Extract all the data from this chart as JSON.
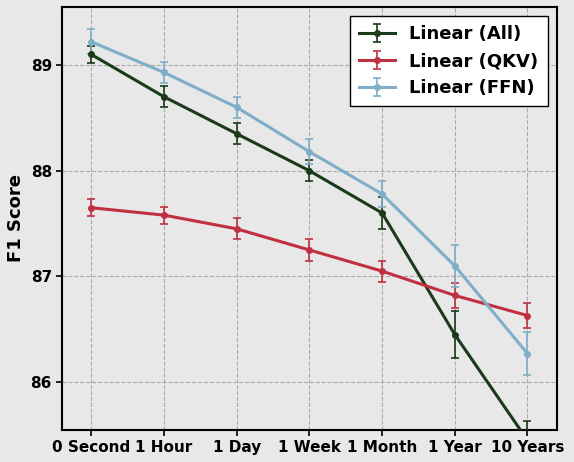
{
  "x_labels": [
    "0 Second",
    "1 Hour",
    "1 Day",
    "1 Week",
    "1 Month",
    "1 Year",
    "10 Years"
  ],
  "x_values": [
    0,
    1,
    2,
    3,
    4,
    5,
    6
  ],
  "series": [
    {
      "label": "Linear (All)",
      "color": "#1a3a1a",
      "y": [
        89.1,
        88.7,
        88.35,
        88.0,
        87.6,
        86.45,
        85.45
      ],
      "yerr": [
        0.08,
        0.1,
        0.1,
        0.1,
        0.15,
        0.22,
        0.18
      ]
    },
    {
      "label": "Linear (QKV)",
      "color": "#c03040",
      "y": [
        87.65,
        87.58,
        87.45,
        87.25,
        87.05,
        86.82,
        86.63
      ],
      "yerr": [
        0.08,
        0.08,
        0.1,
        0.1,
        0.1,
        0.12,
        0.12
      ]
    },
    {
      "label": "Linear (FFN)",
      "color": "#7faec8",
      "y": [
        89.22,
        88.93,
        88.6,
        88.18,
        87.78,
        87.1,
        86.27
      ],
      "yerr": [
        0.12,
        0.1,
        0.1,
        0.12,
        0.12,
        0.2,
        0.2
      ]
    }
  ],
  "ylabel": "F1 Score",
  "ylim": [
    85.55,
    89.55
  ],
  "yticks": [
    86,
    87,
    88,
    89
  ],
  "background_color": "#e8e8e8",
  "grid_color": "#aaaaaa",
  "legend_fontsize": 13,
  "axis_fontsize": 13,
  "tick_fontsize": 11,
  "linewidth": 2.2,
  "marker": "o",
  "markersize": 4,
  "capsize": 3,
  "figsize": [
    5.74,
    4.62
  ],
  "dpi": 100
}
